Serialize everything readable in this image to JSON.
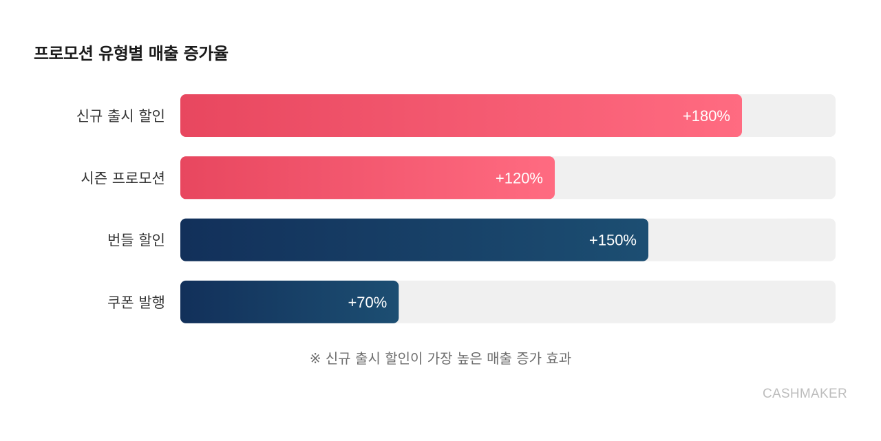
{
  "chart_data": {
    "type": "bar",
    "orientation": "horizontal",
    "title": "프로모션 유형별 매출 증가율",
    "categories": [
      "신규 출시 할인",
      "시즌 프로모션",
      "번들 할인",
      "쿠폰 발행"
    ],
    "values": [
      180,
      120,
      150,
      70
    ],
    "value_labels": [
      "+180%",
      "+120%",
      "+150%",
      "+70%"
    ],
    "xlim": [
      0,
      210
    ],
    "grid": false,
    "legend": "none",
    "annotation": "※ 신규 출시 할인이 가장 높은 매출 증가 효과",
    "bar_colors": [
      {
        "from": "#e8475f",
        "to": "#ff6b81"
      },
      {
        "from": "#e8475f",
        "to": "#ff6b81"
      },
      {
        "from": "#12305a",
        "to": "#1c4e72"
      },
      {
        "from": "#12305a",
        "to": "#1c4e72"
      }
    ],
    "track_color": "#f0f0f0"
  },
  "brand": "CASHMAKER"
}
